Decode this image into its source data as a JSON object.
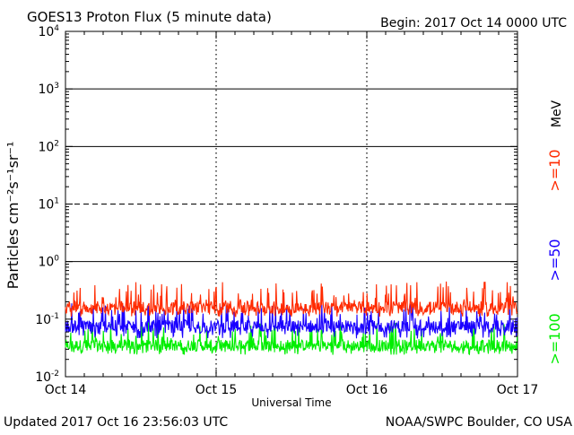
{
  "chart_data": {
    "type": "line",
    "title": "GOES13 Proton Flux (5 minute data)",
    "begin_label": "Begin: 2017 Oct 14 0000 UTC",
    "ylabel": "Particles cm⁻²s⁻¹sr⁻¹",
    "xlabel": "Universal Time",
    "y_scale": "log",
    "ylim": [
      0.01,
      10000
    ],
    "y_ticks": [
      {
        "base": "10",
        "exp": "4",
        "value": 10000
      },
      {
        "base": "10",
        "exp": "3",
        "value": 1000
      },
      {
        "base": "10",
        "exp": "2",
        "value": 100
      },
      {
        "base": "10",
        "exp": "1",
        "value": 10
      },
      {
        "base": "10",
        "exp": "0",
        "value": 1
      },
      {
        "base": "10",
        "exp": "-1",
        "value": 0.1
      },
      {
        "base": "10",
        "exp": "-2",
        "value": 0.01
      }
    ],
    "x_ticks": [
      {
        "label": "Oct 14",
        "day": 0
      },
      {
        "label": "Oct 15",
        "day": 1
      },
      {
        "label": "Oct 16",
        "day": 2
      },
      {
        "label": "Oct 17",
        "day": 3
      }
    ],
    "xlim_days": [
      0,
      3
    ],
    "data_end_day": 2.998,
    "unit_label": "MeV",
    "series": [
      {
        "name": ">=10",
        "color": "#ff2a00",
        "typical": 0.16,
        "min": 0.11,
        "max": 0.45
      },
      {
        "name": ">=50",
        "color": "#1a00ff",
        "typical": 0.075,
        "min": 0.045,
        "max": 0.19
      },
      {
        "name": ">=100",
        "color": "#00ee00",
        "typical": 0.035,
        "min": 0.024,
        "max": 0.09
      }
    ],
    "threshold_lines": [
      10,
      100,
      1000
    ],
    "threshold_styles": [
      "dashed",
      "solid",
      "solid"
    ]
  },
  "footer": {
    "updated": "Updated 2017 Oct 16 23:56:03 UTC",
    "credit": "NOAA/SWPC Boulder, CO USA"
  }
}
